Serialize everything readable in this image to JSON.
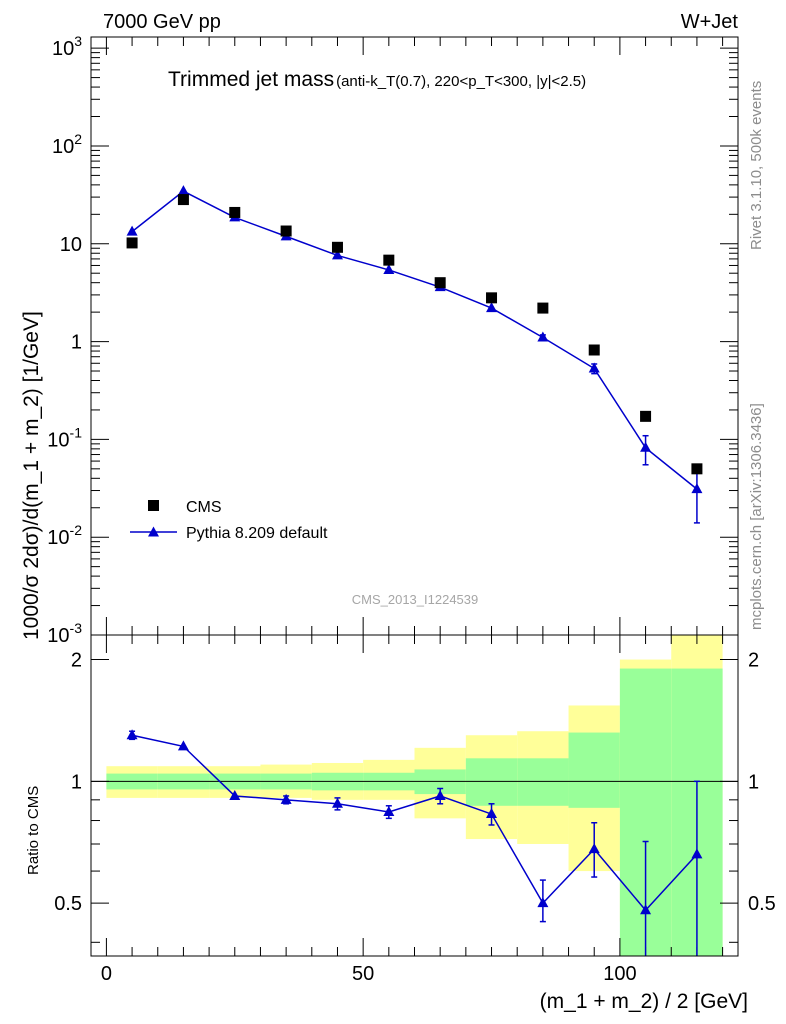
{
  "header": {
    "left": "7000 GeV pp",
    "right": "W+Jet"
  },
  "plot_title": {
    "main": "Trimmed jet mass",
    "detail": "(anti-k_T(0.7), 220<p_T<300, |y|<2.5)"
  },
  "side_labels": {
    "rivet": "Rivet 3.1.10,  500k events",
    "mcplots": "mcplots.cern.ch [arXiv:1306.3436]"
  },
  "watermark": "CMS_2013_I1224539",
  "colors": {
    "mc": "#0000cc",
    "data": "#000000",
    "band_inner": "#99ff99",
    "band_outer": "#ffff99",
    "side_text": "#8c8c8c"
  },
  "chart_data": [
    {
      "type": "scatter",
      "panel": "main",
      "ylabel": "1000/σ 2dσ)/d(m_1 + m_2) [1/GeV]",
      "yscale": "log",
      "ylim": [
        0.001,
        1300
      ],
      "xlim": [
        -3,
        123
      ],
      "y_ticks": [
        "10^-3",
        "10^-2",
        "10^-1",
        "1",
        "10",
        "10^2",
        "10^3"
      ],
      "legend": {
        "position": "bottom-left",
        "entries": [
          "CMS",
          "Pythia 8.209 default"
        ]
      },
      "series": [
        {
          "name": "CMS",
          "marker": "square",
          "x": [
            5,
            15,
            25,
            35,
            45,
            55,
            65,
            75,
            85,
            95,
            105,
            115
          ],
          "y": [
            10.2,
            28.3,
            20.9,
            13.5,
            9.2,
            6.8,
            4.0,
            2.8,
            2.2,
            0.82,
            0.172,
            0.05
          ]
        },
        {
          "name": "Pythia 8.209 default",
          "marker": "triangle",
          "x": [
            5,
            15,
            25,
            35,
            45,
            55,
            65,
            75,
            85,
            95,
            105,
            115
          ],
          "y": [
            13.3,
            34.5,
            18.6,
            11.9,
            7.6,
            5.4,
            3.6,
            2.2,
            1.1,
            0.53,
            0.082,
            0.031
          ],
          "err_low": [
            0.3,
            0.6,
            0.4,
            0.3,
            0.2,
            0.2,
            0.15,
            0.1,
            0.07,
            0.06,
            0.027,
            0.017
          ],
          "err_high": [
            0.3,
            0.6,
            0.4,
            0.3,
            0.2,
            0.2,
            0.15,
            0.1,
            0.07,
            0.06,
            0.027,
            0.014
          ]
        }
      ]
    },
    {
      "type": "line",
      "panel": "ratio",
      "ylabel": "Ratio to CMS",
      "xlabel": "(m_1 + m_2) / 2 [GeV]",
      "yscale": "log",
      "ylim": [
        0.37,
        2.3
      ],
      "xlim": [
        -3,
        123
      ],
      "x_ticks": [
        "0",
        "50",
        "100"
      ],
      "y_ticks": [
        "0.5",
        "1",
        "2"
      ],
      "bands": {
        "bins": [
          [
            0,
            10
          ],
          [
            10,
            20
          ],
          [
            20,
            30
          ],
          [
            30,
            40
          ],
          [
            40,
            50
          ],
          [
            50,
            60
          ],
          [
            60,
            70
          ],
          [
            70,
            80
          ],
          [
            80,
            90
          ],
          [
            90,
            100
          ],
          [
            100,
            110
          ],
          [
            110,
            120
          ]
        ],
        "inner": [
          [
            0.955,
            1.045
          ],
          [
            0.955,
            1.045
          ],
          [
            0.955,
            1.045
          ],
          [
            0.955,
            1.045
          ],
          [
            0.95,
            1.05
          ],
          [
            0.95,
            1.05
          ],
          [
            0.93,
            1.07
          ],
          [
            0.87,
            1.14
          ],
          [
            0.87,
            1.14
          ],
          [
            0.86,
            1.32
          ],
          [
            0.37,
            1.9
          ],
          [
            0.37,
            1.9
          ]
        ],
        "outer": [
          [
            0.91,
            1.09
          ],
          [
            0.91,
            1.09
          ],
          [
            0.91,
            1.09
          ],
          [
            0.91,
            1.1
          ],
          [
            0.9,
            1.11
          ],
          [
            0.9,
            1.13
          ],
          [
            0.81,
            1.21
          ],
          [
            0.72,
            1.3
          ],
          [
            0.7,
            1.33
          ],
          [
            0.6,
            1.54
          ],
          [
            0.45,
            2.0
          ],
          [
            0.37,
            2.3
          ]
        ]
      },
      "series": [
        {
          "name": "Pythia 8.209 default",
          "x": [
            5,
            15,
            25,
            35,
            45,
            55,
            65,
            75,
            85,
            95,
            105,
            115
          ],
          "y": [
            1.3,
            1.22,
            0.92,
            0.9,
            0.88,
            0.84,
            0.92,
            0.83,
            0.5,
            0.68,
            0.48,
            0.66
          ],
          "err_low": [
            0.03,
            0.0,
            0.0,
            0.02,
            0.03,
            0.03,
            0.04,
            0.05,
            0.05,
            0.1,
            0.15,
            0.3
          ],
          "err_high": [
            0.03,
            0.0,
            0.0,
            0.02,
            0.03,
            0.03,
            0.04,
            0.05,
            0.07,
            0.11,
            0.23,
            0.34
          ]
        }
      ]
    }
  ]
}
